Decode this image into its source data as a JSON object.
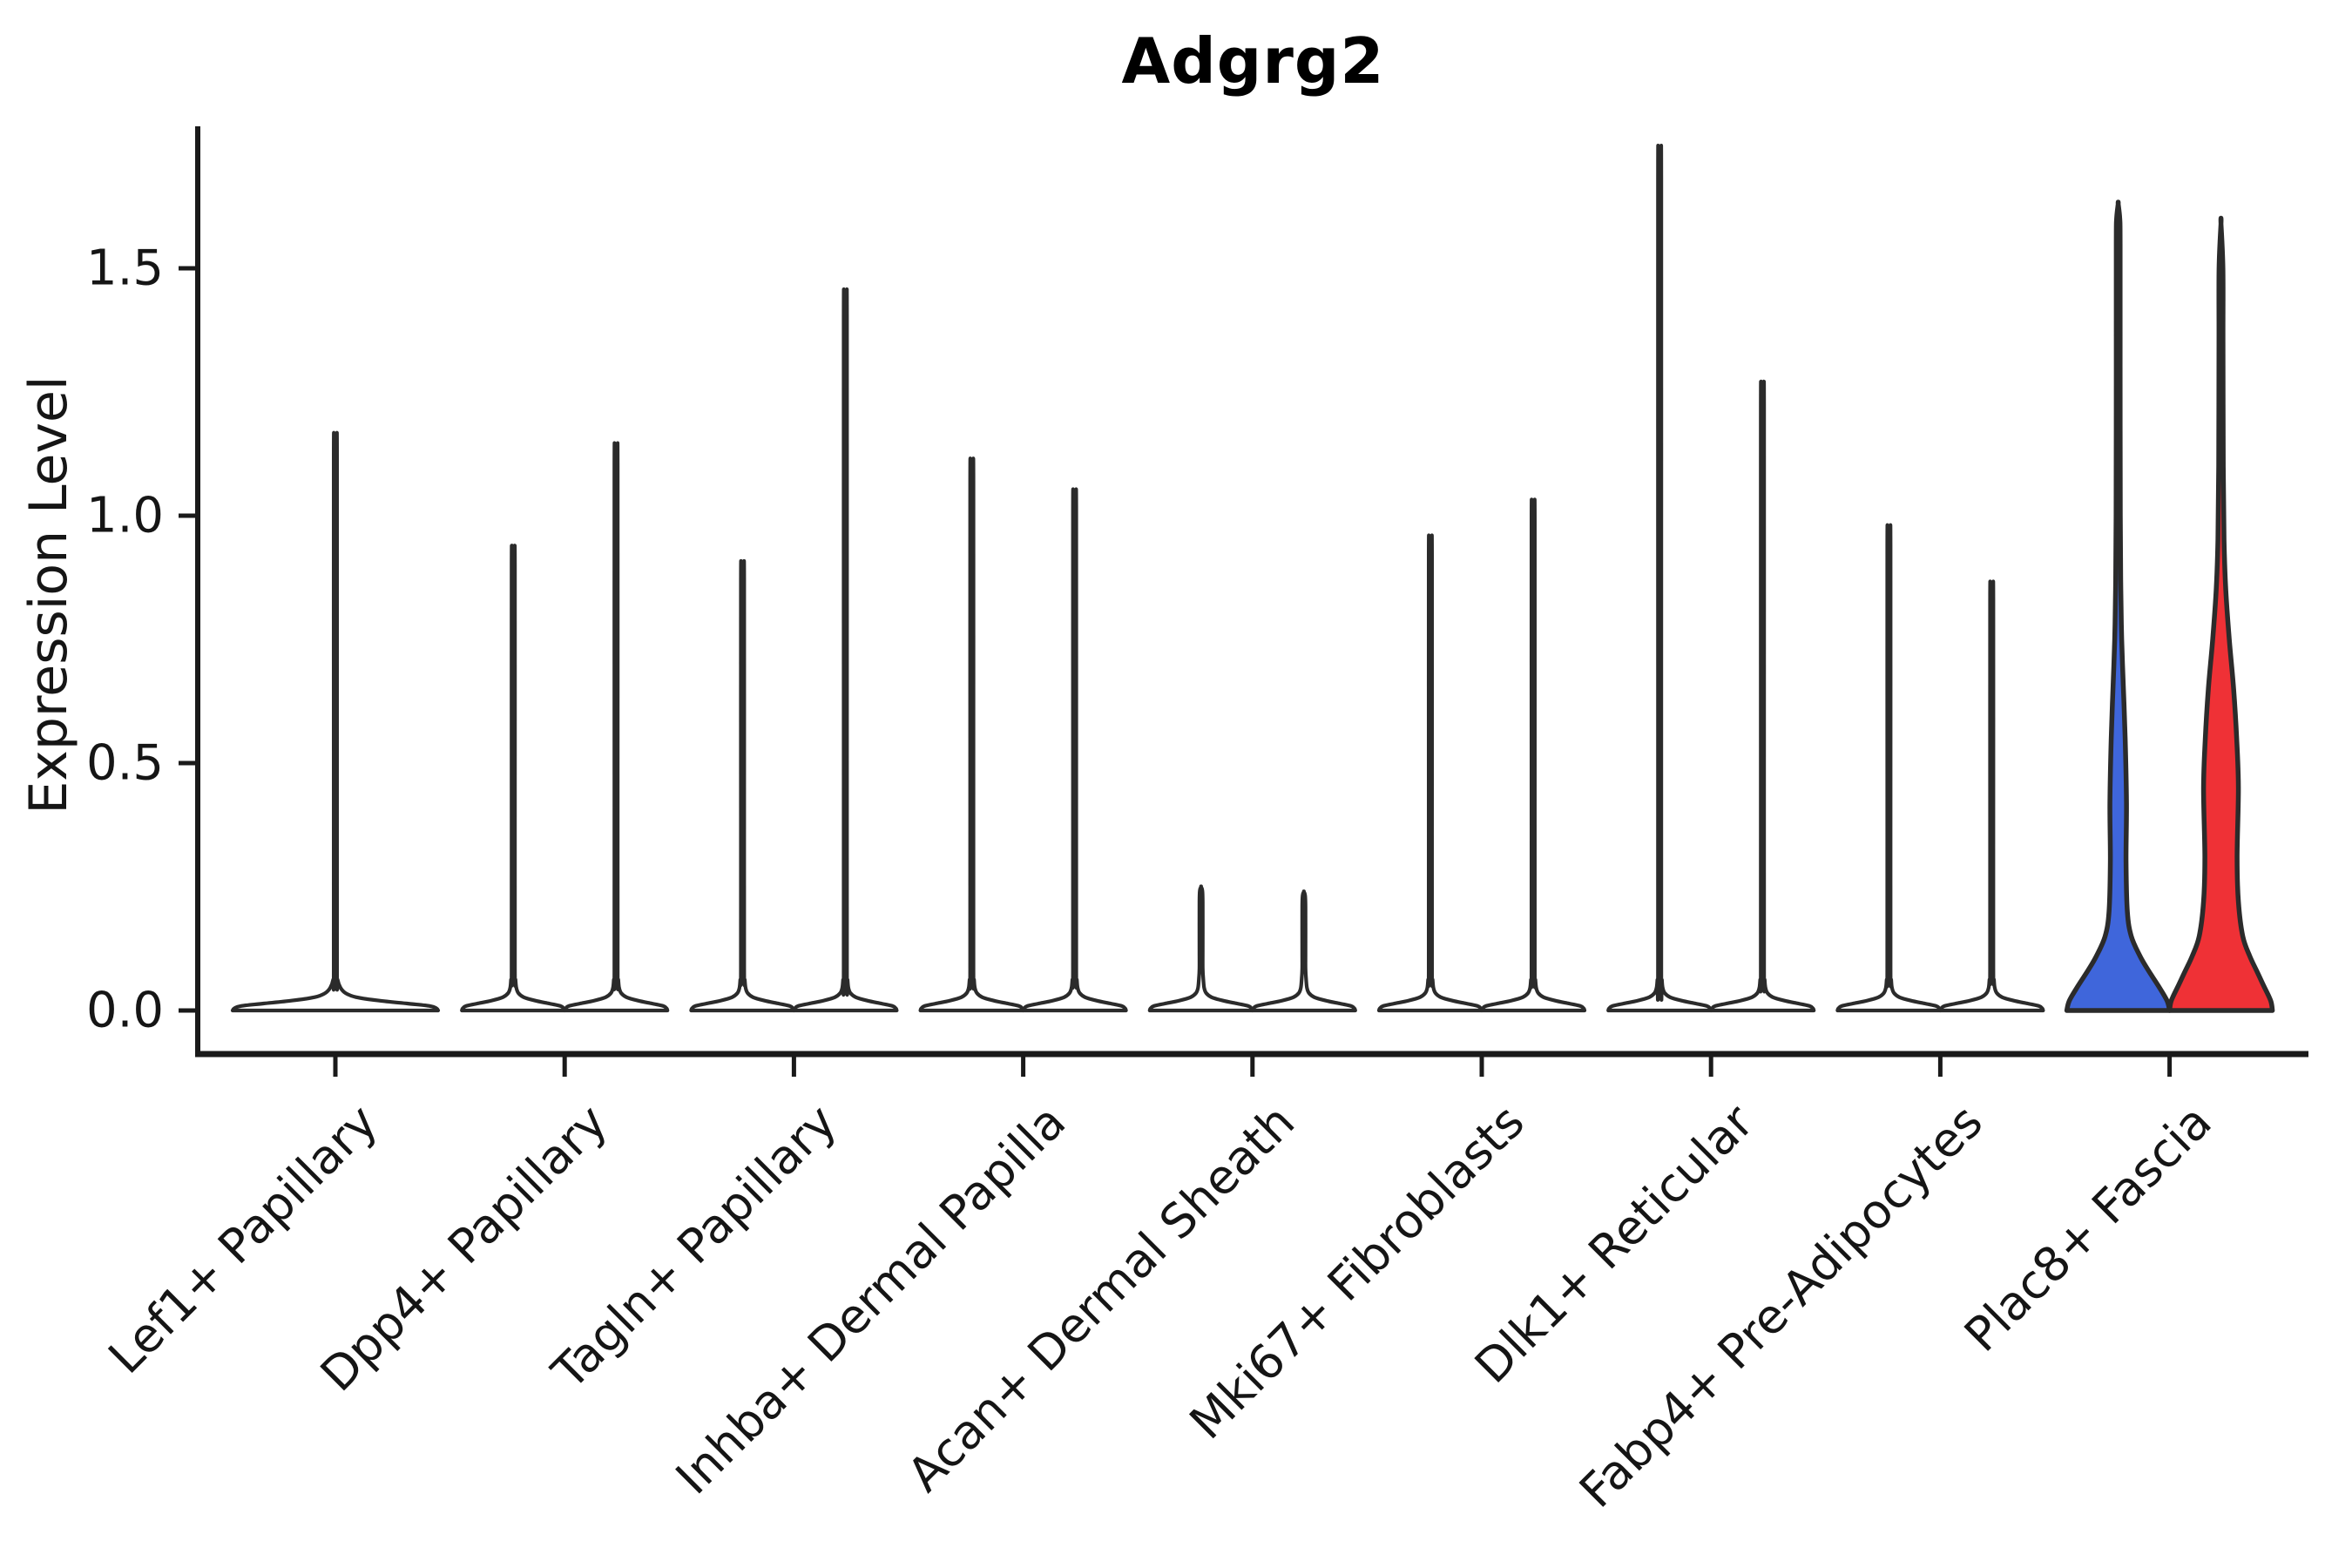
{
  "title": "Adgrg2",
  "y_axis": {
    "label": "Expression Level",
    "tick_labels": [
      "0.0",
      "0.5",
      "1.0",
      "1.5"
    ]
  },
  "chart_data": {
    "type": "violin",
    "title": "Adgrg2",
    "xlabel": "",
    "ylabel": "Expression Level",
    "ylim": [
      0,
      1.79
    ],
    "yticks": [
      0.0,
      0.5,
      1.0,
      1.5
    ],
    "grid": false,
    "legend": "none",
    "categories": [
      "Lef1+ Papillary",
      "Dpp4+ Papillary",
      "Tagln+ Papillary",
      "Inhba+ Dermal Papilla",
      "Acan+ Dermal Sheath",
      "Mki67+ Fibroblasts",
      "Dlk1+ Reticular",
      "Fabp4+ Pre-Adipocytes",
      "Plac8+ Fascia"
    ],
    "description": "Split violin plot; most cells have near-zero expression (wide flat base at 0) with a thin density spike up to the max expressed value. Two side-by-side violins per category (one full-width violin for Lef1+ Papillary). Plac8+ Fascia violins are filled blue (left) and red (right).",
    "violins": [
      {
        "category": "Lef1+ Papillary",
        "groups": [
          {
            "position": "center",
            "max_expression": 1.15,
            "fill": "#FFFFFF",
            "shape": "spike"
          }
        ]
      },
      {
        "category": "Dpp4+ Papillary",
        "groups": [
          {
            "position": "left",
            "max_expression": 0.93,
            "fill": "#FFFFFF",
            "shape": "spike"
          },
          {
            "position": "right",
            "max_expression": 1.13,
            "fill": "#FFFFFF",
            "shape": "spike"
          }
        ]
      },
      {
        "category": "Tagln+ Papillary",
        "groups": [
          {
            "position": "left",
            "max_expression": 0.9,
            "fill": "#FFFFFF",
            "shape": "spike"
          },
          {
            "position": "right",
            "max_expression": 1.43,
            "fill": "#FFFFFF",
            "shape": "spike"
          }
        ]
      },
      {
        "category": "Inhba+ Dermal Papilla",
        "groups": [
          {
            "position": "left",
            "max_expression": 1.1,
            "fill": "#FFFFFF",
            "shape": "spike"
          },
          {
            "position": "right",
            "max_expression": 1.04,
            "fill": "#FFFFFF",
            "shape": "spike"
          }
        ]
      },
      {
        "category": "Acan+ Dermal Sheath",
        "groups": [
          {
            "position": "left",
            "max_expression": 0.25,
            "fill": "#FFFFFF",
            "shape": "spike"
          },
          {
            "position": "right",
            "max_expression": 0.24,
            "fill": "#FFFFFF",
            "shape": "spike"
          }
        ]
      },
      {
        "category": "Mki67+ Fibroblasts",
        "groups": [
          {
            "position": "left",
            "max_expression": 0.95,
            "fill": "#FFFFFF",
            "shape": "spike"
          },
          {
            "position": "right",
            "max_expression": 1.02,
            "fill": "#FFFFFF",
            "shape": "spike"
          }
        ]
      },
      {
        "category": "Dlk1+ Reticular",
        "groups": [
          {
            "position": "left",
            "max_expression": 1.71,
            "fill": "#FFFFFF",
            "shape": "spike"
          },
          {
            "position": "right",
            "max_expression": 1.25,
            "fill": "#FFFFFF",
            "shape": "spike"
          }
        ]
      },
      {
        "category": "Fabp4+ Pre-Adipocytes",
        "groups": [
          {
            "position": "left",
            "max_expression": 0.97,
            "fill": "#FFFFFF",
            "shape": "spike"
          },
          {
            "position": "right",
            "max_expression": 0.86,
            "fill": "#FFFFFF",
            "shape": "spike"
          }
        ]
      },
      {
        "category": "Plac8+ Fascia",
        "groups": [
          {
            "position": "left",
            "max_expression": 1.63,
            "fill": "#3F66DB",
            "shape": "profile",
            "profile": [
              [
                0,
                59
              ],
              [
                0.02,
                56
              ],
              [
                0.05,
                46
              ],
              [
                0.08,
                35
              ],
              [
                0.11,
                25
              ],
              [
                0.15,
                15
              ],
              [
                0.2,
                10.5
              ],
              [
                0.3,
                9
              ],
              [
                0.42,
                9.5
              ],
              [
                0.55,
                8
              ],
              [
                0.65,
                6
              ],
              [
                0.75,
                4
              ],
              [
                0.85,
                3
              ],
              [
                1.0,
                2.4
              ],
              [
                1.3,
                2.2
              ],
              [
                1.55,
                2.2
              ],
              [
                1.6,
                1.8
              ],
              [
                1.63,
                0
              ]
            ]
          },
          {
            "position": "right",
            "max_expression": 1.59,
            "fill": "#EF3136",
            "shape": "profile",
            "profile": [
              [
                0,
                59
              ],
              [
                0.02,
                57
              ],
              [
                0.05,
                49
              ],
              [
                0.08,
                41
              ],
              [
                0.11,
                33
              ],
              [
                0.15,
                25
              ],
              [
                0.22,
                20
              ],
              [
                0.31,
                18.5
              ],
              [
                0.45,
                20
              ],
              [
                0.55,
                18
              ],
              [
                0.65,
                14.5
              ],
              [
                0.75,
                9.5
              ],
              [
                0.85,
                5.5
              ],
              [
                0.95,
                3.5
              ],
              [
                1.1,
                2.6
              ],
              [
                1.35,
                2.3
              ],
              [
                1.5,
                2.2
              ],
              [
                1.59,
                0
              ]
            ]
          }
        ]
      }
    ],
    "colors": {
      "violin_fill_default": "#FFFFFF",
      "highlight_blue": "#3F66DB",
      "highlight_red": "#EF3136",
      "outline": "#2B2B2B",
      "axis": "#1A1A1A"
    }
  }
}
